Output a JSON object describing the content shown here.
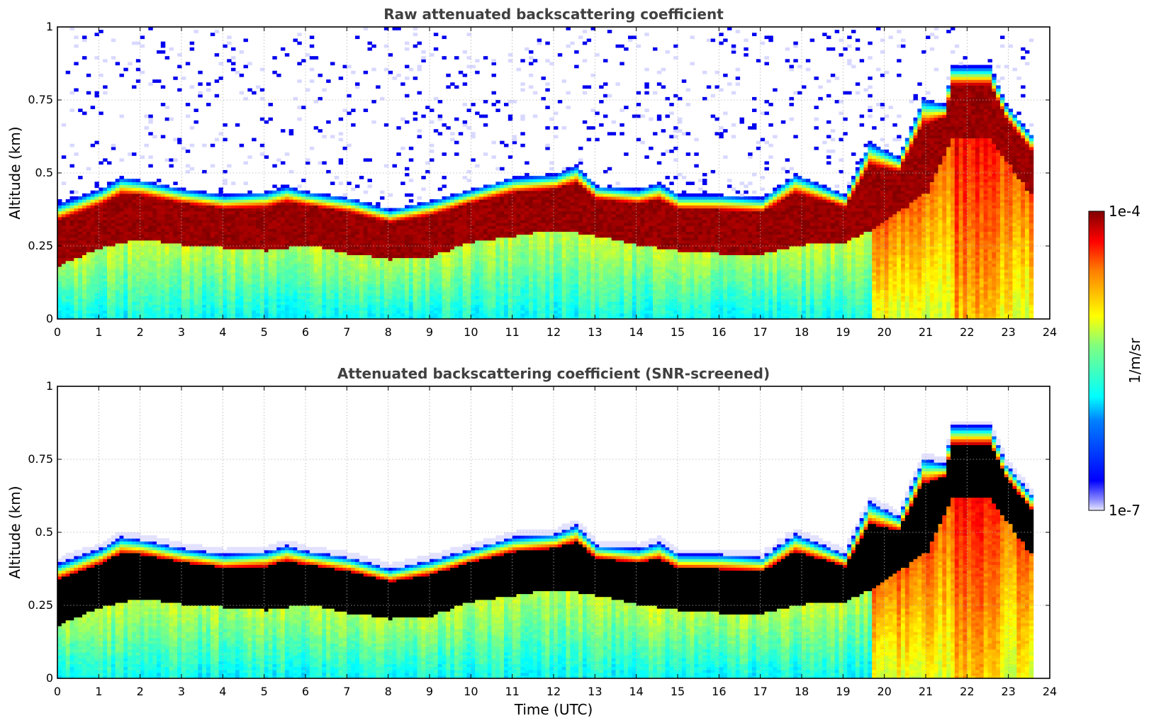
{
  "chart_data": [
    {
      "type": "heatmap",
      "title": "Raw attenuated backscattering coefficient",
      "xlabel": "",
      "ylabel": "Altitude (km)",
      "xlim": [
        0,
        24
      ],
      "ylim": [
        0,
        1
      ],
      "xticks": [
        "0",
        "1",
        "2",
        "3",
        "4",
        "5",
        "6",
        "7",
        "8",
        "9",
        "10",
        "11",
        "12",
        "13",
        "14",
        "15",
        "16",
        "17",
        "18",
        "19",
        "20",
        "21",
        "22",
        "23",
        "24"
      ],
      "yticks": [
        "0",
        "0.25",
        "0.5",
        "0.75",
        "1"
      ],
      "grid": true,
      "data_end_hour": 23.6,
      "layer_top_km": [
        [
          0,
          0.39
        ],
        [
          1,
          0.44
        ],
        [
          1.5,
          0.48
        ],
        [
          2,
          0.47
        ],
        [
          3,
          0.44
        ],
        [
          4,
          0.42
        ],
        [
          5,
          0.43
        ],
        [
          5.5,
          0.45
        ],
        [
          6,
          0.43
        ],
        [
          7,
          0.41
        ],
        [
          8,
          0.37
        ],
        [
          9,
          0.4
        ],
        [
          10,
          0.44
        ],
        [
          11,
          0.48
        ],
        [
          12,
          0.49
        ],
        [
          12.5,
          0.52
        ],
        [
          13,
          0.45
        ],
        [
          14,
          0.44
        ],
        [
          14.5,
          0.46
        ],
        [
          15,
          0.42
        ],
        [
          16,
          0.42
        ],
        [
          17,
          0.41
        ],
        [
          17.8,
          0.49
        ],
        [
          18.5,
          0.45
        ],
        [
          19,
          0.42
        ],
        [
          19.6,
          0.6
        ],
        [
          20.3,
          0.55
        ],
        [
          20.9,
          0.75
        ],
        [
          21.4,
          0.73
        ],
        [
          21.6,
          0.86
        ],
        [
          22.5,
          0.86
        ],
        [
          22.9,
          0.73
        ],
        [
          23.6,
          0.61
        ]
      ],
      "layer_bottom_km": [
        [
          0,
          0.18
        ],
        [
          1,
          0.24
        ],
        [
          2,
          0.27
        ],
        [
          3,
          0.25
        ],
        [
          4,
          0.24
        ],
        [
          5,
          0.23
        ],
        [
          6,
          0.25
        ],
        [
          7,
          0.22
        ],
        [
          8,
          0.2
        ],
        [
          9,
          0.21
        ],
        [
          10,
          0.26
        ],
        [
          11,
          0.28
        ],
        [
          12,
          0.3
        ],
        [
          13,
          0.28
        ],
        [
          14,
          0.25
        ],
        [
          15,
          0.23
        ],
        [
          16,
          0.22
        ],
        [
          17,
          0.22
        ],
        [
          18,
          0.25
        ],
        [
          19,
          0.26
        ],
        [
          19.6,
          0.3
        ],
        [
          20.5,
          0.38
        ],
        [
          21,
          0.43
        ],
        [
          21.6,
          0.62
        ],
        [
          22.5,
          0.62
        ],
        [
          23.6,
          0.4
        ]
      ]
    },
    {
      "type": "heatmap",
      "title": "Attenuated backscattering coefficient (SNR-screened)",
      "xlabel": "Time (UTC)",
      "ylabel": "Altitude (km)",
      "xlim": [
        0,
        24
      ],
      "ylim": [
        0,
        1
      ],
      "xticks": [
        "0",
        "1",
        "2",
        "3",
        "4",
        "5",
        "6",
        "7",
        "8",
        "9",
        "10",
        "11",
        "12",
        "13",
        "14",
        "15",
        "16",
        "17",
        "18",
        "19",
        "20",
        "21",
        "22",
        "23",
        "24"
      ],
      "yticks": [
        "0",
        "0.25",
        "0.5",
        "0.75",
        "1"
      ],
      "grid": true,
      "data_end_hour": 23.6
    }
  ],
  "colorbar": {
    "label": "1/m/sr",
    "max_label": "1e-4",
    "min_label": "1e-7",
    "colormap": "jet"
  },
  "colors": {
    "background": "#ffffff",
    "clipped_high_screened": "#000000",
    "title_text": "#404040"
  }
}
